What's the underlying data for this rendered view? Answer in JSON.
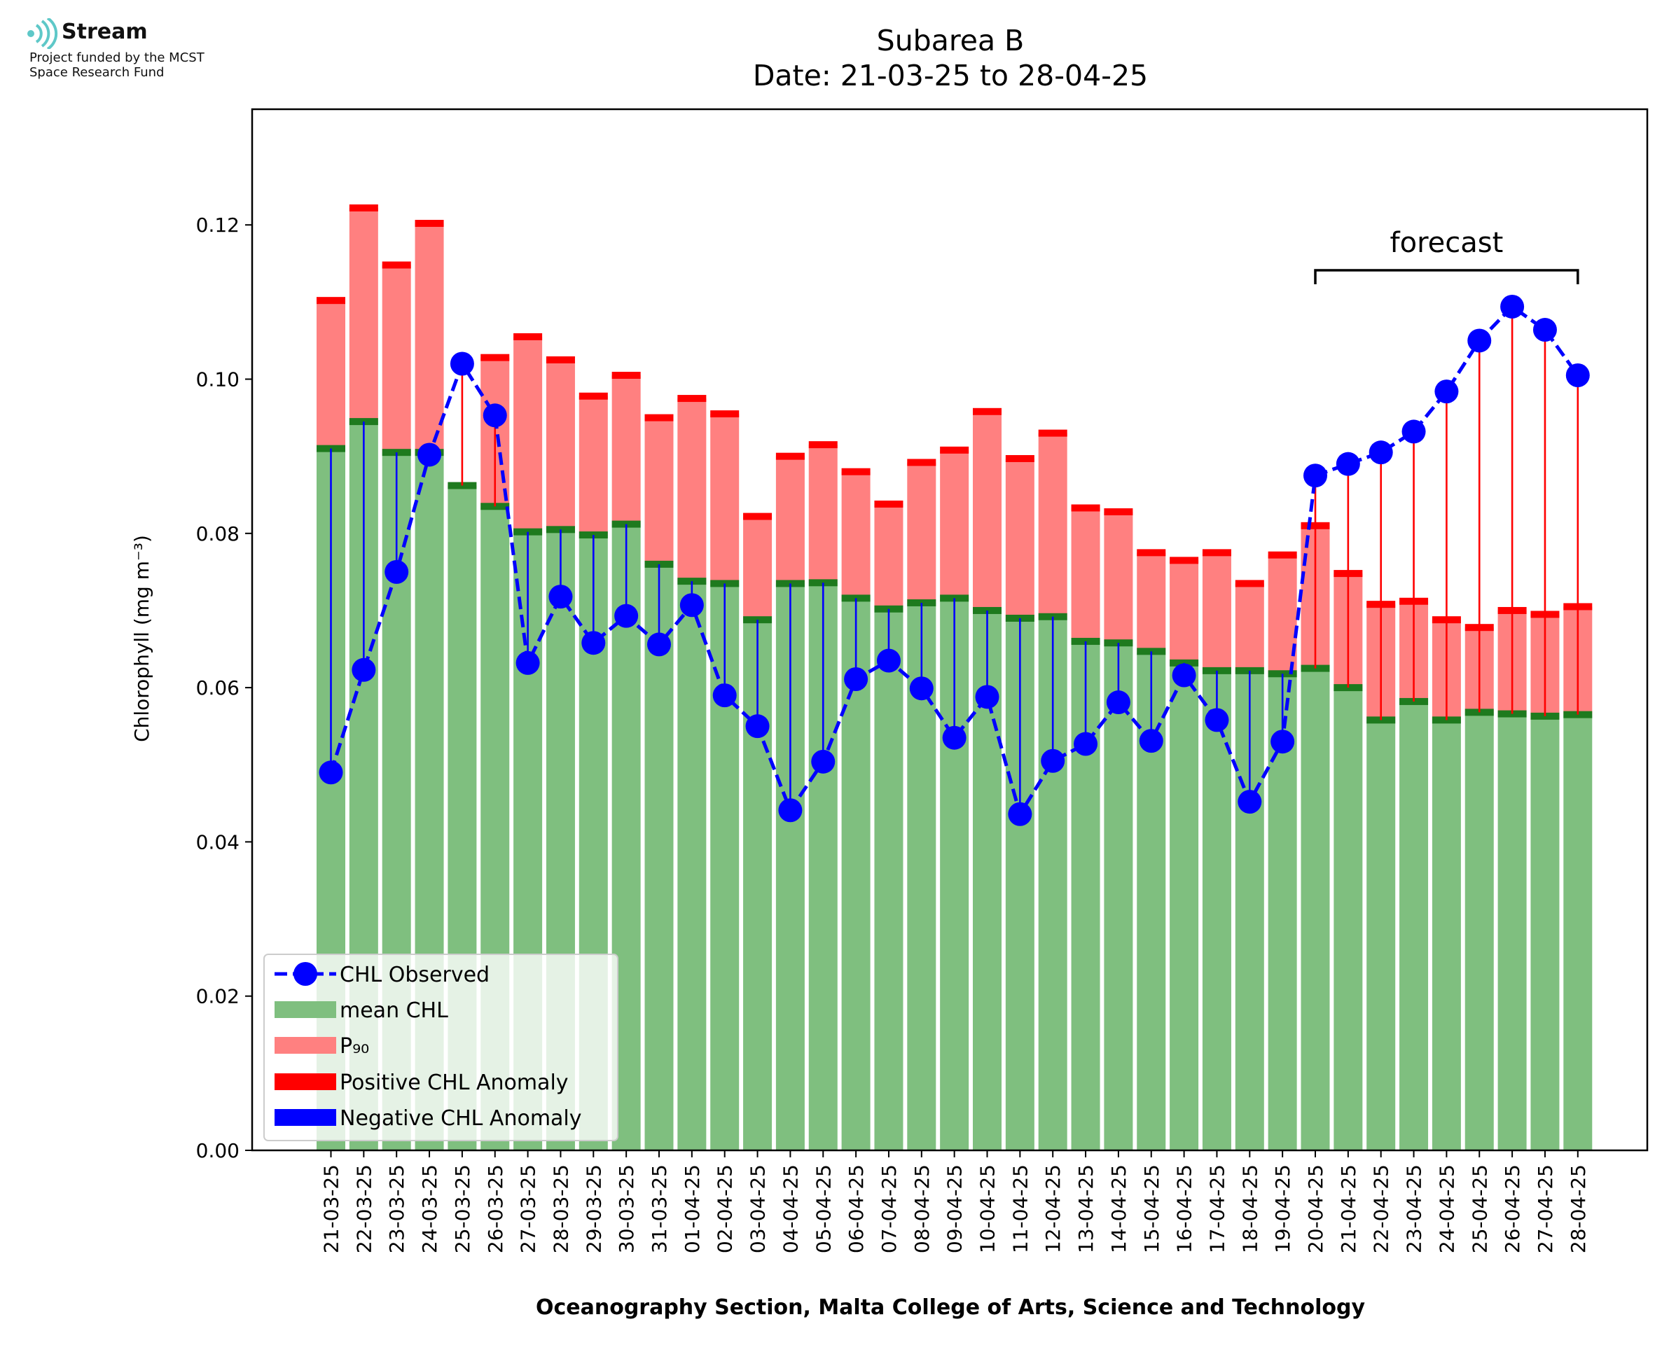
{
  "logo": {
    "name": "Stream",
    "line1": "Project funded by the MCST",
    "line2": "Space Research Fund",
    "color": "#5ec8c8"
  },
  "chart_data": {
    "type": "bar",
    "title": "Subarea B",
    "subtitle": "Date: 21-03-25 to 28-04-25",
    "xlabel": "Oceanography Section, Malta College of Arts, Science and Technology",
    "ylabel": "Chlorophyll (mg m⁻³)",
    "ylim": [
      0,
      0.135
    ],
    "yticks": [
      "0.00",
      "0.02",
      "0.04",
      "0.06",
      "0.08",
      "0.10",
      "0.12"
    ],
    "grid": false,
    "legend_position": "lower-left",
    "annotation": "forecast",
    "forecast_range": [
      "20-04-25",
      "28-04-25"
    ],
    "categories": [
      "21-03-25",
      "22-03-25",
      "23-03-25",
      "24-03-25",
      "25-03-25",
      "26-03-25",
      "27-03-25",
      "28-03-25",
      "29-03-25",
      "30-03-25",
      "31-03-25",
      "01-04-25",
      "02-04-25",
      "03-04-25",
      "04-04-25",
      "05-04-25",
      "06-04-25",
      "07-04-25",
      "08-04-25",
      "09-04-25",
      "10-04-25",
      "11-04-25",
      "12-04-25",
      "13-04-25",
      "14-04-25",
      "15-04-25",
      "16-04-25",
      "17-04-25",
      "18-04-25",
      "19-04-25",
      "20-04-25",
      "21-04-25",
      "22-04-25",
      "23-04-25",
      "24-04-25",
      "25-04-25",
      "26-04-25",
      "27-04-25",
      "28-04-25"
    ],
    "series": [
      {
        "name": "CHL Observed",
        "color": "#0000ff",
        "values": [
          0.049,
          0.0623,
          0.075,
          0.0902,
          0.102,
          0.0953,
          0.0632,
          0.0718,
          0.0658,
          0.0693,
          0.0656,
          0.0707,
          0.059,
          0.055,
          0.0441,
          0.0504,
          0.0611,
          0.0635,
          0.0599,
          0.0535,
          0.0588,
          0.0436,
          0.0505,
          0.0527,
          0.0581,
          0.0531,
          0.0616,
          0.0558,
          0.0452,
          0.053,
          0.0875,
          0.089,
          0.0905,
          0.0932,
          0.0984,
          0.105,
          0.1094,
          0.1064,
          0.1005
        ]
      },
      {
        "name": "mean CHL",
        "color": "#7fbf7f",
        "values": [
          0.091,
          0.0945,
          0.0905,
          0.0905,
          0.0862,
          0.0835,
          0.0802,
          0.0805,
          0.0798,
          0.0812,
          0.076,
          0.0738,
          0.0735,
          0.0688,
          0.0735,
          0.0736,
          0.0716,
          0.0702,
          0.071,
          0.0716,
          0.07,
          0.069,
          0.0692,
          0.066,
          0.0658,
          0.0647,
          0.0632,
          0.0622,
          0.0622,
          0.0618,
          0.0625,
          0.06,
          0.0558,
          0.0582,
          0.0558,
          0.0568,
          0.0566,
          0.0563,
          0.0565
        ]
      },
      {
        "name": "P₉₀",
        "color": "#ff8080",
        "values": [
          0.1102,
          0.1222,
          0.1148,
          0.1202,
          0.0,
          0.1028,
          0.1055,
          0.1025,
          0.0978,
          0.1005,
          0.095,
          0.0975,
          0.0955,
          0.0822,
          0.09,
          0.0915,
          0.088,
          0.0838,
          0.0892,
          0.0908,
          0.0958,
          0.0897,
          0.093,
          0.0833,
          0.0828,
          0.0775,
          0.0765,
          0.0775,
          0.0735,
          0.0772,
          0.081,
          0.0748,
          0.0708,
          0.0712,
          0.0688,
          0.0678,
          0.07,
          0.0695,
          0.0705
        ]
      },
      {
        "name": "Positive CHL Anomaly",
        "color": "#ff0000"
      },
      {
        "name": "Negative CHL Anomaly",
        "color": "#0000ff"
      }
    ]
  }
}
